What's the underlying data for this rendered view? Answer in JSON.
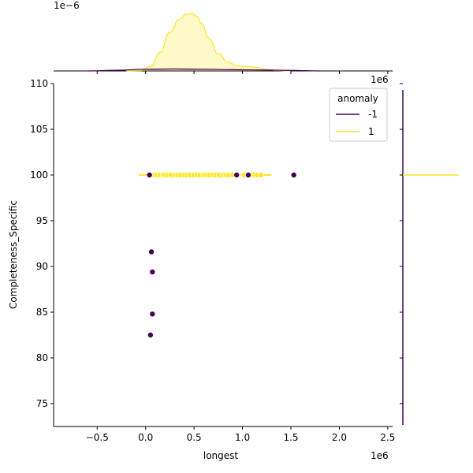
{
  "chart_data": {
    "type": "scatter",
    "xlabel": "longest",
    "ylabel": "Completeness_Specific",
    "x_offset_label": "1e6",
    "marginal_offset_label": "1e−6",
    "xlim": [
      -0.95,
      2.55
    ],
    "ylim": [
      72.5,
      110
    ],
    "xticks": [
      -0.5,
      0.0,
      0.5,
      1.0,
      1.5,
      2.0,
      2.5
    ],
    "xtick_labels": [
      "−0.5",
      "0.0",
      "0.5",
      "1.0",
      "1.5",
      "2.0",
      "2.5"
    ],
    "yticks": [
      75,
      80,
      85,
      90,
      95,
      100,
      105,
      110
    ],
    "ytick_labels": [
      "75",
      "80",
      "85",
      "90",
      "95",
      "100",
      "105",
      "110"
    ],
    "legend": {
      "title": "anomaly",
      "placement": "top-right",
      "entries": [
        {
          "label": "-1",
          "color": "#440154"
        },
        {
          "label": "1",
          "color": "#fde725"
        }
      ]
    },
    "series": [
      {
        "name": "1",
        "color": "#fde725",
        "x": [
          0.05,
          0.09,
          0.12,
          0.15,
          0.18,
          0.2,
          0.23,
          0.26,
          0.3,
          0.33,
          0.36,
          0.4,
          0.43,
          0.46,
          0.5,
          0.53,
          0.56,
          0.6,
          0.63,
          0.66,
          0.7,
          0.73,
          0.76,
          0.8,
          0.83,
          0.86,
          0.9,
          1.02,
          1.09,
          1.12,
          1.15,
          1.19
        ],
        "y": [
          100,
          100,
          100,
          100,
          100,
          100,
          100,
          100,
          100,
          100,
          100,
          100,
          100,
          100,
          100,
          100,
          100,
          100,
          100,
          100,
          100,
          100,
          100,
          100,
          100,
          100,
          100,
          100,
          100,
          100,
          100,
          100
        ]
      },
      {
        "name": "-1",
        "color": "#440154",
        "x": [
          0.04,
          0.94,
          1.06,
          1.53,
          0.06,
          0.07,
          0.07,
          0.05
        ],
        "y": [
          100,
          100,
          100,
          100,
          91.6,
          89.4,
          84.8,
          82.5
        ]
      }
    ],
    "x_marginal": {
      "type": "area",
      "color": "#fde725",
      "x": [
        -0.2,
        -0.05,
        0.05,
        0.15,
        0.25,
        0.35,
        0.42,
        0.48,
        0.53,
        0.58,
        0.65,
        0.75,
        0.85,
        0.95,
        1.05,
        1.15,
        1.25,
        1.35,
        1.5
      ],
      "y": [
        0,
        0.02,
        0.3,
        1.3,
        2.7,
        3.6,
        3.95,
        4.0,
        3.8,
        3.3,
        2.3,
        1.2,
        0.6,
        0.35,
        0.3,
        0.25,
        0.1,
        0.03,
        0
      ],
      "anomaly_x": [
        -0.6,
        -0.3,
        0.0,
        0.3,
        0.6,
        0.9,
        1.2,
        1.5,
        1.8
      ],
      "anomaly_y": [
        0,
        0.05,
        0.12,
        0.14,
        0.12,
        0.09,
        0.07,
        0.04,
        0
      ],
      "ylim": [
        0,
        4.5
      ]
    },
    "y_marginal": {
      "yellow_spike_y": 100,
      "purple_range": [
        72.5,
        110
      ]
    }
  }
}
